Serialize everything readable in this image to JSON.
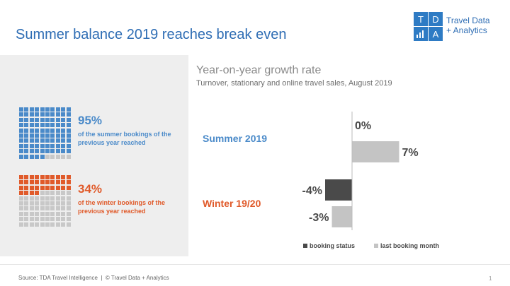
{
  "header": {
    "title": "Summer balance 2019 reaches break even",
    "logo": {
      "letters": [
        "T",
        "D",
        "A"
      ],
      "line1": "Travel Data",
      "line2": "+ Analytics"
    }
  },
  "colors": {
    "summer": "#4a8ac9",
    "winter": "#e05a2a",
    "dark_bar": "#4a4a4a",
    "light_bar": "#c4c4c4",
    "waffle_empty": "#c8c8c8"
  },
  "left": {
    "summer": {
      "percent": "95%",
      "filled": 95,
      "text": "of the summer bookings of the previous year reached"
    },
    "winter": {
      "percent": "34%",
      "filled": 34,
      "text": "of the winter bookings of the previous year reached"
    }
  },
  "chart_title": "Year-on-year growth rate",
  "chart_subtitle": "Turnover, stationary and online travel sales, August 2019",
  "chart_data": {
    "type": "bar",
    "orientation": "horizontal",
    "title": "Year-on-year growth rate",
    "subtitle": "Turnover, stationary and online travel sales, August 2019",
    "categories": [
      "Summer 2019",
      "Winter 19/20"
    ],
    "series": [
      {
        "name": "booking status",
        "values": [
          0,
          -4
        ],
        "labels": [
          "0%",
          "-4%"
        ],
        "color": "#4a4a4a"
      },
      {
        "name": "last booking month",
        "values": [
          7,
          -3
        ],
        "labels": [
          "7%",
          "-3%"
        ],
        "color": "#c4c4c4"
      }
    ],
    "unit": "%",
    "xlim": [
      -8,
      8
    ],
    "grid": false,
    "legend": "bottom"
  },
  "footer": {
    "source": "Source: TDA Travel Intelligence",
    "sep": "  |  ",
    "copyright": "© Travel Data + Analytics",
    "page": "1"
  }
}
